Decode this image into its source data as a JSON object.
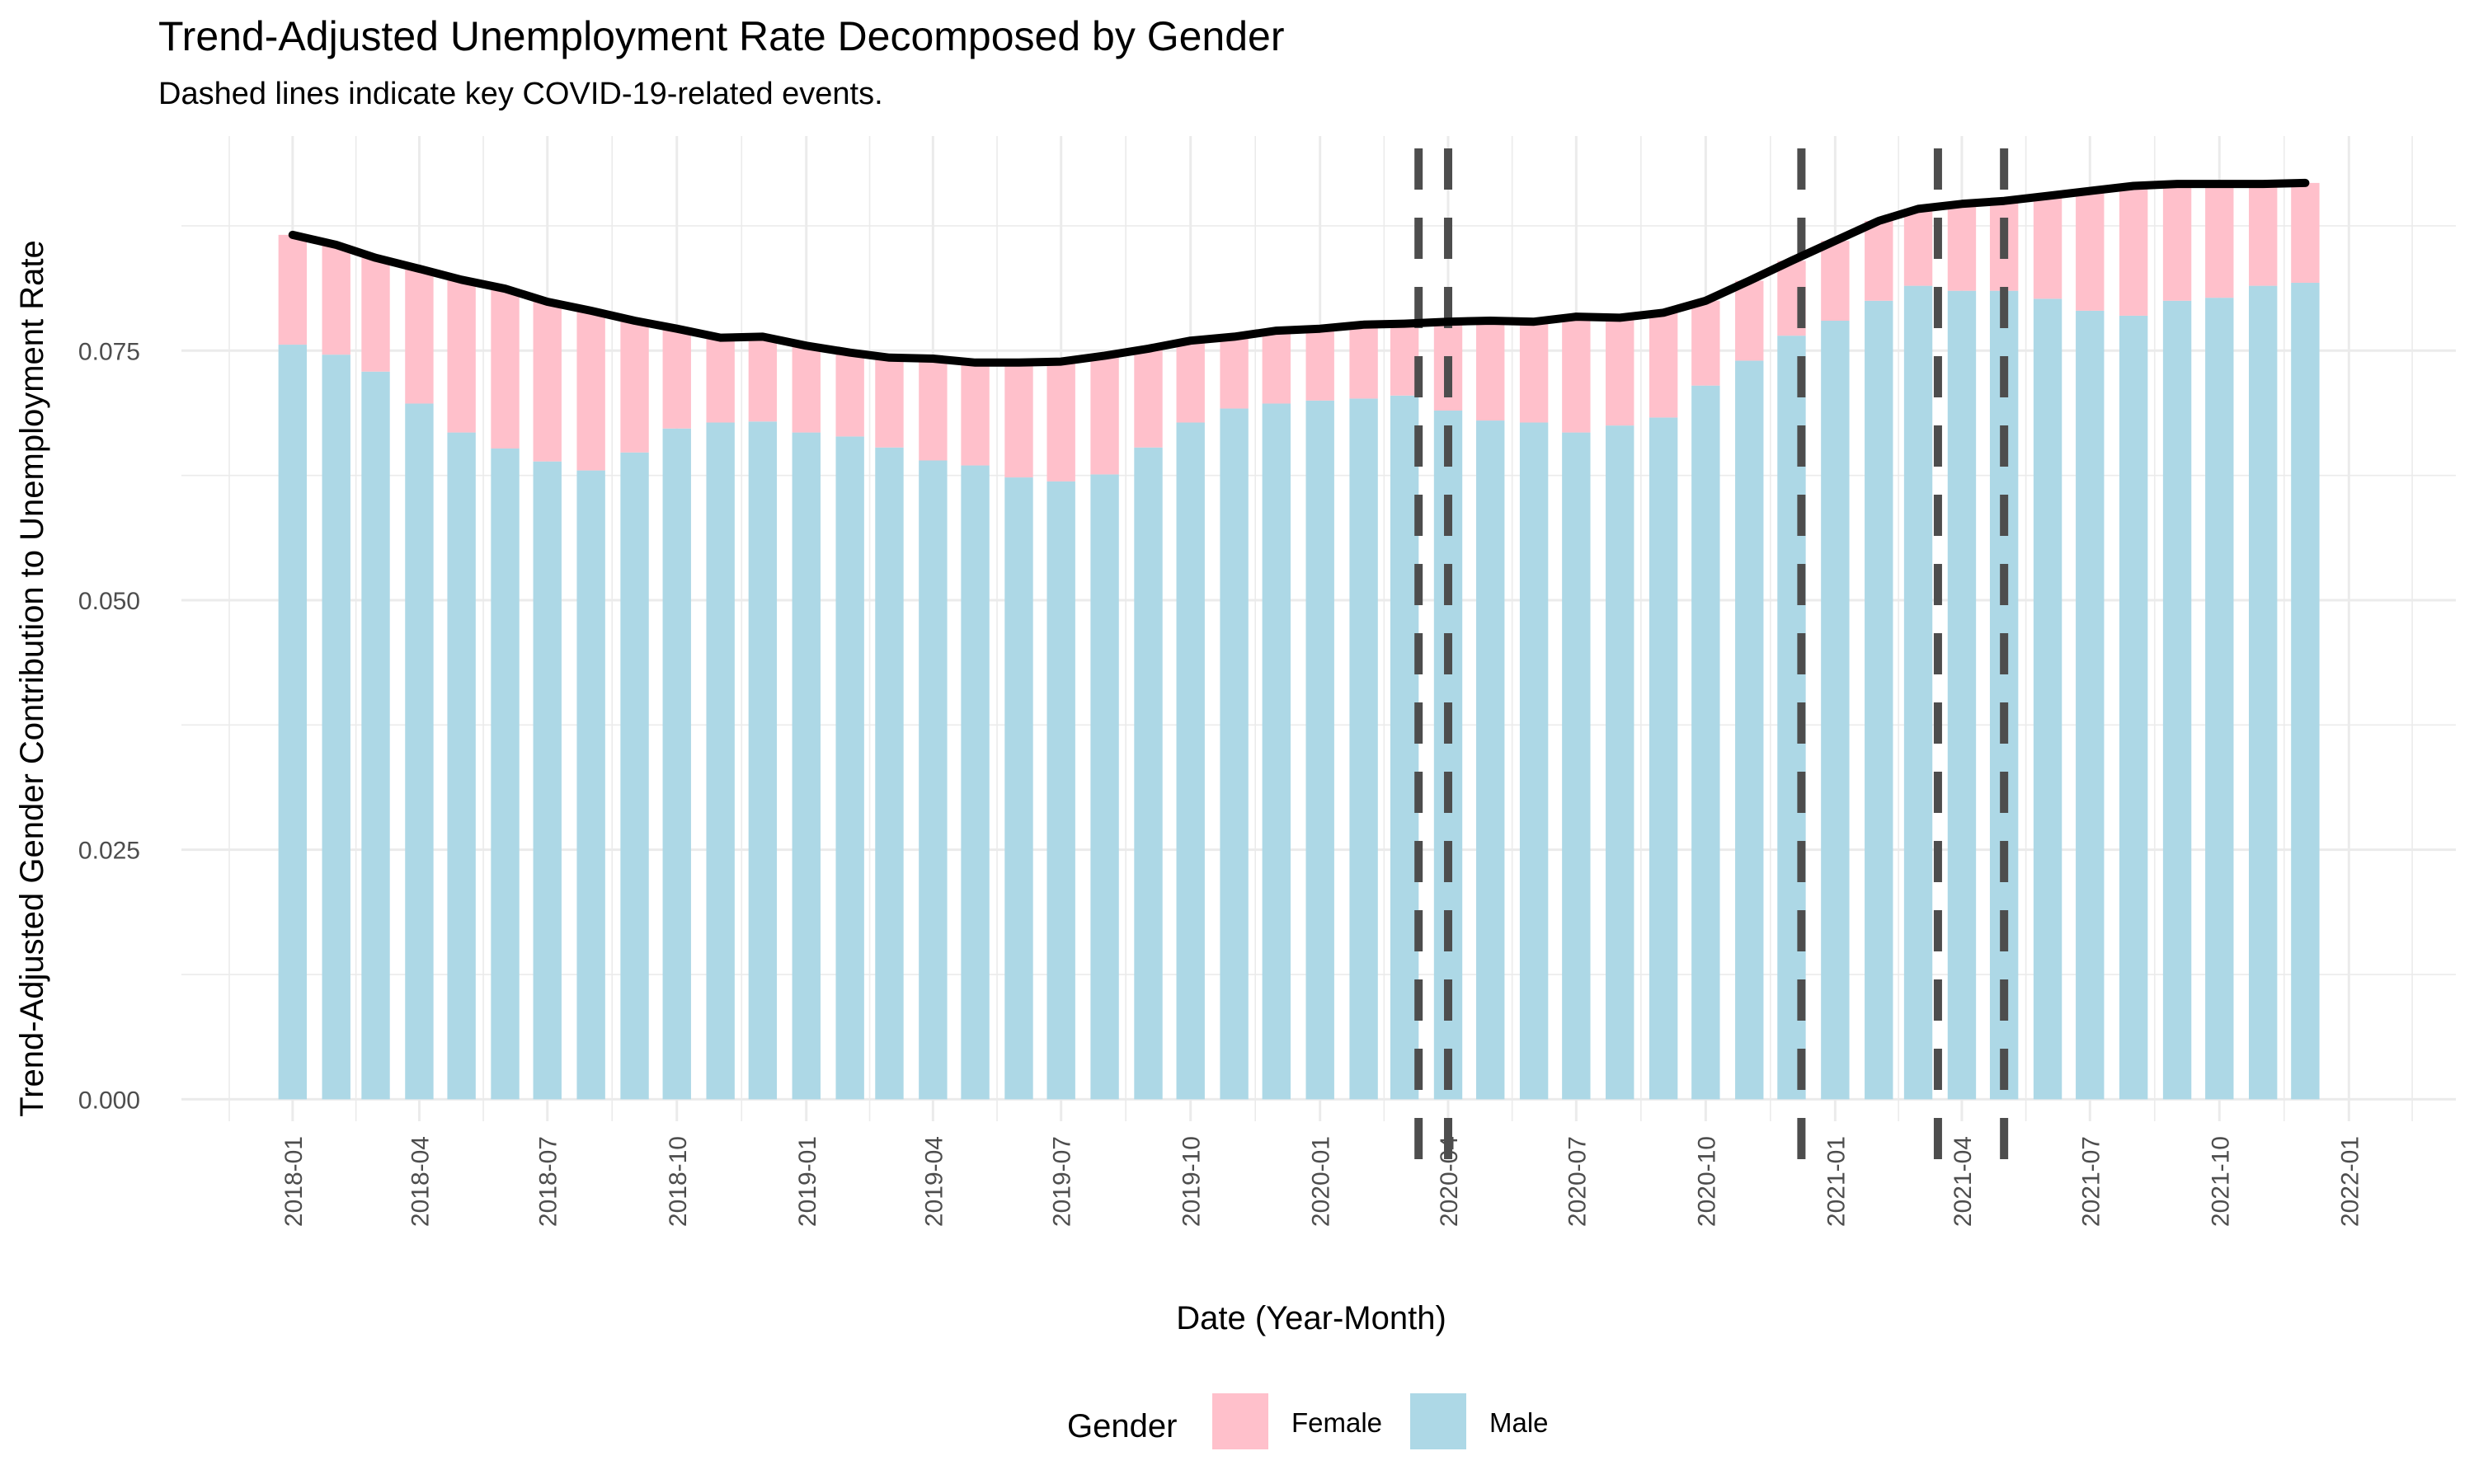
{
  "chart_data": {
    "type": "bar",
    "stacked": true,
    "title": "Trend-Adjusted Unemployment Rate Decomposed by Gender",
    "subtitle": "Dashed lines indicate key COVID-19-related events.",
    "xlabel": "Date (Year-Month)",
    "ylabel": "Trend-Adjusted Gender Contribution to Unemployment Rate",
    "ylim": [
      -0.0022,
      0.0965
    ],
    "xlim": [
      "2017-10-14",
      "2022-03-18"
    ],
    "y_ticks": [
      "0.000",
      "0.025",
      "0.050",
      "0.075"
    ],
    "x_ticks": [
      "2018-01",
      "2018-04",
      "2018-07",
      "2018-10",
      "2019-01",
      "2019-04",
      "2019-07",
      "2019-10",
      "2020-01",
      "2020-04",
      "2020-07",
      "2020-10",
      "2021-01",
      "2021-04",
      "2021-07",
      "2021-10",
      "2022-01"
    ],
    "grid": true,
    "legend": {
      "title": "Gender",
      "position": "bottom",
      "entries": [
        "Female",
        "Male"
      ]
    },
    "colors": {
      "Female": "#ffc0cb",
      "Male": "#add8e6",
      "trend": "#000000",
      "events": "#4d4d4d"
    },
    "categories": [
      "2018-01",
      "2018-02",
      "2018-03",
      "2018-04",
      "2018-05",
      "2018-06",
      "2018-07",
      "2018-08",
      "2018-09",
      "2018-10",
      "2018-11",
      "2018-12",
      "2019-01",
      "2019-02",
      "2019-03",
      "2019-04",
      "2019-05",
      "2019-06",
      "2019-07",
      "2019-08",
      "2019-09",
      "2019-10",
      "2019-11",
      "2019-12",
      "2020-01",
      "2020-02",
      "2020-03",
      "2020-04",
      "2020-05",
      "2020-06",
      "2020-07",
      "2020-08",
      "2020-09",
      "2020-10",
      "2020-11",
      "2020-12",
      "2021-01",
      "2021-02",
      "2021-03",
      "2021-04",
      "2021-05",
      "2021-06",
      "2021-07",
      "2021-08",
      "2021-09",
      "2021-10",
      "2021-11",
      "2021-12"
    ],
    "series": [
      {
        "name": "Male",
        "values": [
          0.0756,
          0.0746,
          0.0729,
          0.0697,
          0.0668,
          0.0652,
          0.0639,
          0.063,
          0.0648,
          0.0672,
          0.0678,
          0.0679,
          0.0668,
          0.0664,
          0.0653,
          0.064,
          0.0635,
          0.0623,
          0.0619,
          0.0626,
          0.0653,
          0.0678,
          0.0692,
          0.0697,
          0.07,
          0.0702,
          0.0705,
          0.069,
          0.068,
          0.0678,
          0.0668,
          0.0675,
          0.0683,
          0.0715,
          0.074,
          0.0765,
          0.078,
          0.08,
          0.0815,
          0.081,
          0.081,
          0.0802,
          0.079,
          0.0785,
          0.08,
          0.0803,
          0.0815,
          0.0818
        ]
      },
      {
        "name": "Female",
        "values": [
          0.011,
          0.011,
          0.0114,
          0.0135,
          0.0153,
          0.016,
          0.016,
          0.016,
          0.0132,
          0.01,
          0.0085,
          0.0085,
          0.0087,
          0.0084,
          0.009,
          0.0102,
          0.0103,
          0.0115,
          0.012,
          0.0119,
          0.0099,
          0.0082,
          0.0072,
          0.0073,
          0.0072,
          0.0074,
          0.0072,
          0.0089,
          0.01,
          0.0101,
          0.0116,
          0.0108,
          0.0105,
          0.0085,
          0.008,
          0.0075,
          0.008,
          0.008,
          0.0077,
          0.0087,
          0.009,
          0.0103,
          0.012,
          0.013,
          0.0117,
          0.0115,
          0.0103,
          0.01
        ]
      }
    ],
    "trend_line": {
      "values": [
        0.0866,
        0.0856,
        0.0843,
        0.0832,
        0.0821,
        0.0812,
        0.0799,
        0.079,
        0.078,
        0.0772,
        0.0763,
        0.0764,
        0.0755,
        0.0748,
        0.0743,
        0.0742,
        0.0738,
        0.0738,
        0.0739,
        0.0745,
        0.0752,
        0.076,
        0.0764,
        0.077,
        0.0772,
        0.0776,
        0.0777,
        0.0779,
        0.078,
        0.0779,
        0.0784,
        0.0783,
        0.0788,
        0.08,
        0.082,
        0.084,
        0.086,
        0.088,
        0.0892,
        0.0897,
        0.09,
        0.0905,
        0.091,
        0.0915,
        0.0917,
        0.0917,
        0.0917,
        0.0918
      ]
    },
    "event_dates": [
      "2020-03-11",
      "2020-04-01",
      "2020-12-08",
      "2021-03-15",
      "2021-05-01"
    ]
  }
}
